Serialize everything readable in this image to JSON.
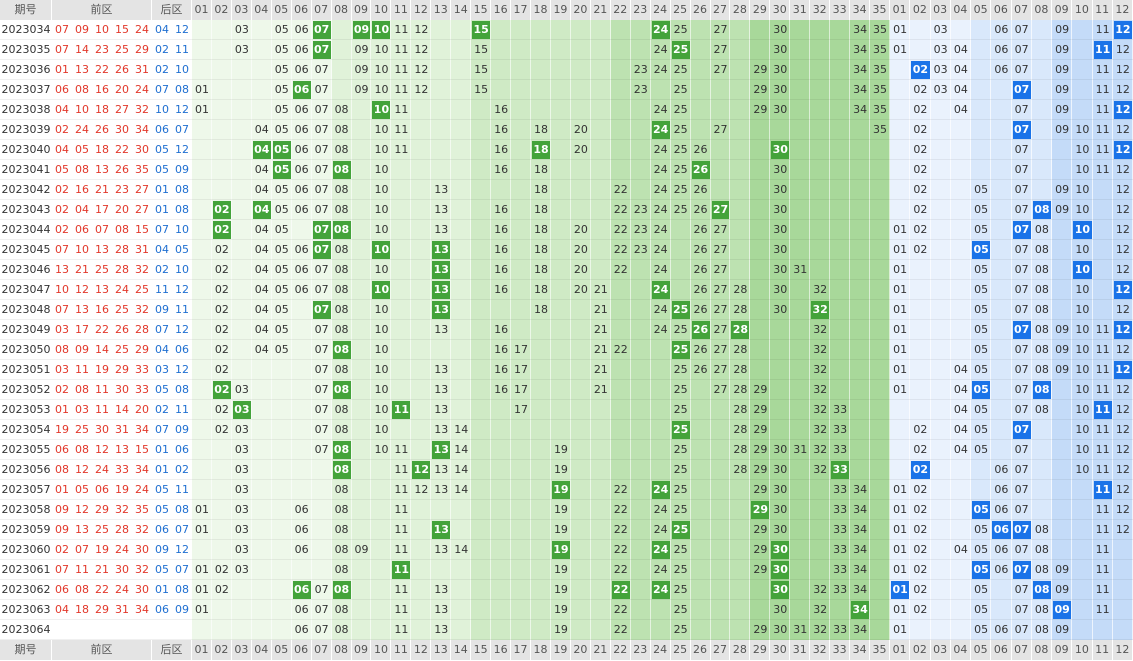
{
  "header": {
    "issue": "期号",
    "front": "前区",
    "back": "后区",
    "front_cols": [
      "01",
      "02",
      "03",
      "04",
      "05",
      "06",
      "07",
      "08",
      "09",
      "10",
      "11",
      "12",
      "13",
      "14",
      "15",
      "16",
      "17",
      "18",
      "19",
      "20",
      "21",
      "22",
      "23",
      "24",
      "25",
      "26",
      "27",
      "28",
      "29",
      "30",
      "31",
      "32",
      "33",
      "34",
      "35"
    ],
    "back_cols": [
      "01",
      "02",
      "03",
      "04",
      "05",
      "06",
      "07",
      "08",
      "09",
      "10",
      "11",
      "12"
    ]
  },
  "rows": [
    {
      "issue": "2023034",
      "front": [
        "07",
        "09",
        "10",
        "15",
        "24"
      ],
      "back": [
        "04",
        "12"
      ],
      "front_grid": [
        "03",
        "05",
        "06",
        "07",
        "09",
        "10",
        "11",
        "12",
        "15",
        "24",
        "25",
        "27",
        "30",
        "34",
        "35"
      ],
      "back_grid": [
        "01",
        "03",
        "06",
        "07",
        "09",
        "11",
        "12"
      ]
    },
    {
      "issue": "2023035",
      "front": [
        "07",
        "14",
        "23",
        "25",
        "29"
      ],
      "back": [
        "02",
        "11"
      ],
      "front_grid": [
        "03",
        "05",
        "06",
        "07",
        "09",
        "10",
        "11",
        "12",
        "15",
        "24",
        "25",
        "27",
        "30",
        "34",
        "35"
      ],
      "back_grid": [
        "01",
        "03",
        "04",
        "06",
        "07",
        "09",
        "11",
        "12"
      ]
    },
    {
      "issue": "2023036",
      "front": [
        "01",
        "13",
        "22",
        "26",
        "31"
      ],
      "back": [
        "02",
        "10"
      ],
      "front_grid": [
        "05",
        "06",
        "07",
        "09",
        "10",
        "11",
        "12",
        "15",
        "23",
        "24",
        "25",
        "27",
        "29",
        "30",
        "34",
        "35"
      ],
      "back_grid": [
        "02",
        "03",
        "04",
        "06",
        "07",
        "09",
        "11",
        "12"
      ]
    },
    {
      "issue": "2023037",
      "front": [
        "06",
        "08",
        "16",
        "20",
        "24"
      ],
      "back": [
        "07",
        "08"
      ],
      "front_grid": [
        "01",
        "05",
        "06",
        "07",
        "09",
        "10",
        "11",
        "12",
        "15",
        "23",
        "25",
        "29",
        "30",
        "34",
        "35"
      ],
      "back_grid": [
        "02",
        "03",
        "04",
        "07",
        "09",
        "11",
        "12"
      ]
    },
    {
      "issue": "2023038",
      "front": [
        "04",
        "10",
        "18",
        "27",
        "32"
      ],
      "back": [
        "10",
        "12"
      ],
      "front_grid": [
        "01",
        "05",
        "06",
        "07",
        "08",
        "10",
        "11",
        "16",
        "24",
        "25",
        "29",
        "30",
        "34",
        "35"
      ],
      "back_grid": [
        "02",
        "04",
        "07",
        "09",
        "11",
        "12"
      ]
    },
    {
      "issue": "2023039",
      "front": [
        "02",
        "24",
        "26",
        "30",
        "34"
      ],
      "back": [
        "06",
        "07"
      ],
      "front_grid": [
        "04",
        "05",
        "06",
        "07",
        "08",
        "10",
        "11",
        "16",
        "18",
        "20",
        "24",
        "25",
        "27",
        "35"
      ],
      "back_grid": [
        "02",
        "07",
        "09",
        "10",
        "11",
        "12"
      ]
    },
    {
      "issue": "2023040",
      "front": [
        "04",
        "05",
        "18",
        "22",
        "30"
      ],
      "back": [
        "05",
        "12"
      ],
      "front_grid": [
        "04",
        "05",
        "06",
        "07",
        "08",
        "10",
        "11",
        "16",
        "18",
        "20",
        "24",
        "25",
        "26",
        "30"
      ],
      "back_grid": [
        "02",
        "07",
        "10",
        "11",
        "12"
      ]
    },
    {
      "issue": "2023041",
      "front": [
        "05",
        "08",
        "13",
        "26",
        "35"
      ],
      "back": [
        "05",
        "09"
      ],
      "front_grid": [
        "04",
        "05",
        "06",
        "07",
        "08",
        "10",
        "16",
        "18",
        "24",
        "25",
        "26",
        "30"
      ],
      "back_grid": [
        "02",
        "07",
        "10",
        "11",
        "12"
      ]
    },
    {
      "issue": "2023042",
      "front": [
        "02",
        "16",
        "21",
        "23",
        "27"
      ],
      "back": [
        "01",
        "08"
      ],
      "front_grid": [
        "04",
        "05",
        "06",
        "07",
        "08",
        "10",
        "13",
        "18",
        "22",
        "24",
        "25",
        "26",
        "30"
      ],
      "back_grid": [
        "02",
        "05",
        "07",
        "09",
        "10",
        "12"
      ]
    },
    {
      "issue": "2023043",
      "front": [
        "02",
        "04",
        "17",
        "20",
        "27"
      ],
      "back": [
        "01",
        "08"
      ],
      "front_grid": [
        "02",
        "04",
        "05",
        "06",
        "07",
        "08",
        "10",
        "13",
        "16",
        "18",
        "22",
        "23",
        "24",
        "25",
        "26",
        "27",
        "30"
      ],
      "back_grid": [
        "02",
        "05",
        "07",
        "08",
        "09",
        "10",
        "12"
      ]
    },
    {
      "issue": "2023044",
      "front": [
        "02",
        "06",
        "07",
        "08",
        "15"
      ],
      "back": [
        "07",
        "10"
      ],
      "front_grid": [
        "02",
        "04",
        "05",
        "07",
        "08",
        "10",
        "13",
        "16",
        "18",
        "20",
        "22",
        "23",
        "24",
        "26",
        "27",
        "30"
      ],
      "back_grid": [
        "01",
        "02",
        "05",
        "07",
        "08",
        "10",
        "12"
      ]
    },
    {
      "issue": "2023045",
      "front": [
        "07",
        "10",
        "13",
        "28",
        "31"
      ],
      "back": [
        "04",
        "05"
      ],
      "front_grid": [
        "02",
        "04",
        "05",
        "06",
        "07",
        "08",
        "10",
        "13",
        "16",
        "18",
        "20",
        "22",
        "23",
        "24",
        "26",
        "27",
        "30"
      ],
      "back_grid": [
        "01",
        "02",
        "05",
        "07",
        "08",
        "10",
        "12"
      ]
    },
    {
      "issue": "2023046",
      "front": [
        "13",
        "21",
        "25",
        "28",
        "32"
      ],
      "back": [
        "02",
        "10"
      ],
      "front_grid": [
        "02",
        "04",
        "05",
        "06",
        "07",
        "08",
        "10",
        "13",
        "16",
        "18",
        "20",
        "22",
        "24",
        "26",
        "27",
        "30",
        "31"
      ],
      "back_grid": [
        "01",
        "05",
        "07",
        "08",
        "10",
        "12"
      ]
    },
    {
      "issue": "2023047",
      "front": [
        "10",
        "12",
        "13",
        "24",
        "25"
      ],
      "back": [
        "11",
        "12"
      ],
      "front_grid": [
        "02",
        "04",
        "05",
        "06",
        "07",
        "08",
        "10",
        "13",
        "16",
        "18",
        "20",
        "21",
        "24",
        "26",
        "27",
        "28",
        "30",
        "32"
      ],
      "back_grid": [
        "01",
        "05",
        "07",
        "08",
        "10",
        "12"
      ]
    },
    {
      "issue": "2023048",
      "front": [
        "07",
        "13",
        "16",
        "25",
        "32"
      ],
      "back": [
        "09",
        "11"
      ],
      "front_grid": [
        "02",
        "04",
        "05",
        "07",
        "08",
        "10",
        "13",
        "18",
        "21",
        "24",
        "25",
        "26",
        "27",
        "28",
        "30",
        "32"
      ],
      "back_grid": [
        "01",
        "05",
        "07",
        "08",
        "10",
        "12"
      ]
    },
    {
      "issue": "2023049",
      "front": [
        "03",
        "17",
        "22",
        "26",
        "28"
      ],
      "back": [
        "07",
        "12"
      ],
      "front_grid": [
        "02",
        "04",
        "05",
        "07",
        "08",
        "10",
        "13",
        "16",
        "21",
        "24",
        "25",
        "26",
        "27",
        "28",
        "32"
      ],
      "back_grid": [
        "01",
        "05",
        "07",
        "08",
        "09",
        "10",
        "11",
        "12"
      ]
    },
    {
      "issue": "2023050",
      "front": [
        "08",
        "09",
        "14",
        "25",
        "29"
      ],
      "back": [
        "04",
        "06"
      ],
      "front_grid": [
        "02",
        "04",
        "05",
        "07",
        "08",
        "10",
        "16",
        "17",
        "21",
        "22",
        "25",
        "26",
        "27",
        "28",
        "32"
      ],
      "back_grid": [
        "01",
        "05",
        "07",
        "08",
        "09",
        "10",
        "11",
        "12"
      ]
    },
    {
      "issue": "2023051",
      "front": [
        "03",
        "11",
        "19",
        "29",
        "33"
      ],
      "back": [
        "03",
        "12"
      ],
      "front_grid": [
        "02",
        "07",
        "08",
        "10",
        "13",
        "16",
        "17",
        "21",
        "25",
        "26",
        "27",
        "28",
        "32"
      ],
      "back_grid": [
        "01",
        "04",
        "05",
        "07",
        "08",
        "09",
        "10",
        "11",
        "12"
      ]
    },
    {
      "issue": "2023052",
      "front": [
        "02",
        "08",
        "11",
        "30",
        "33"
      ],
      "back": [
        "05",
        "08"
      ],
      "front_grid": [
        "02",
        "03",
        "07",
        "08",
        "10",
        "13",
        "16",
        "17",
        "21",
        "25",
        "27",
        "28",
        "29",
        "32"
      ],
      "back_grid": [
        "01",
        "04",
        "05",
        "07",
        "08",
        "10",
        "11",
        "12"
      ]
    },
    {
      "issue": "2023053",
      "front": [
        "01",
        "03",
        "11",
        "14",
        "20"
      ],
      "back": [
        "02",
        "11"
      ],
      "front_grid": [
        "02",
        "03",
        "07",
        "08",
        "10",
        "11",
        "13",
        "17",
        "25",
        "28",
        "29",
        "32",
        "33"
      ],
      "back_grid": [
        "04",
        "05",
        "07",
        "08",
        "10",
        "11",
        "12"
      ]
    },
    {
      "issue": "2023054",
      "front": [
        "19",
        "25",
        "30",
        "31",
        "34"
      ],
      "back": [
        "07",
        "09"
      ],
      "front_grid": [
        "02",
        "03",
        "07",
        "08",
        "10",
        "13",
        "14",
        "25",
        "28",
        "29",
        "32",
        "33"
      ],
      "back_grid": [
        "02",
        "04",
        "05",
        "07",
        "10",
        "11",
        "12"
      ]
    },
    {
      "issue": "2023055",
      "front": [
        "06",
        "08",
        "12",
        "13",
        "15"
      ],
      "back": [
        "01",
        "06"
      ],
      "front_grid": [
        "03",
        "07",
        "08",
        "10",
        "11",
        "13",
        "14",
        "19",
        "25",
        "28",
        "29",
        "30",
        "31",
        "32",
        "33"
      ],
      "back_grid": [
        "02",
        "04",
        "05",
        "07",
        "10",
        "11",
        "12"
      ]
    },
    {
      "issue": "2023056",
      "front": [
        "08",
        "12",
        "24",
        "33",
        "34"
      ],
      "back": [
        "01",
        "02"
      ],
      "front_grid": [
        "03",
        "08",
        "11",
        "12",
        "13",
        "14",
        "19",
        "25",
        "28",
        "29",
        "30",
        "32",
        "33"
      ],
      "back_grid": [
        "02",
        "06",
        "07",
        "10",
        "11",
        "12"
      ]
    },
    {
      "issue": "2023057",
      "front": [
        "01",
        "05",
        "06",
        "19",
        "24"
      ],
      "back": [
        "05",
        "11"
      ],
      "front_grid": [
        "03",
        "08",
        "11",
        "12",
        "13",
        "14",
        "19",
        "22",
        "24",
        "25",
        "29",
        "30",
        "33",
        "34"
      ],
      "back_grid": [
        "01",
        "02",
        "06",
        "07",
        "11",
        "12"
      ]
    },
    {
      "issue": "2023058",
      "front": [
        "09",
        "12",
        "29",
        "32",
        "35"
      ],
      "back": [
        "05",
        "08"
      ],
      "front_grid": [
        "01",
        "03",
        "06",
        "08",
        "11",
        "19",
        "22",
        "24",
        "25",
        "29",
        "30",
        "33",
        "34"
      ],
      "back_grid": [
        "01",
        "02",
        "05",
        "06",
        "07",
        "11",
        "12"
      ]
    },
    {
      "issue": "2023059",
      "front": [
        "09",
        "13",
        "25",
        "28",
        "32"
      ],
      "back": [
        "06",
        "07"
      ],
      "front_grid": [
        "01",
        "03",
        "06",
        "08",
        "11",
        "13",
        "19",
        "22",
        "24",
        "25",
        "29",
        "30",
        "33",
        "34"
      ],
      "back_grid": [
        "01",
        "02",
        "05",
        "06",
        "07",
        "08",
        "11",
        "12"
      ]
    },
    {
      "issue": "2023060",
      "front": [
        "02",
        "07",
        "19",
        "24",
        "30"
      ],
      "back": [
        "09",
        "12"
      ],
      "front_grid": [
        "03",
        "06",
        "08",
        "09",
        "11",
        "13",
        "14",
        "19",
        "22",
        "24",
        "25",
        "29",
        "30",
        "33",
        "34"
      ],
      "back_grid": [
        "01",
        "02",
        "04",
        "05",
        "06",
        "07",
        "08",
        "11"
      ]
    },
    {
      "issue": "2023061",
      "front": [
        "07",
        "11",
        "21",
        "30",
        "32"
      ],
      "back": [
        "05",
        "07"
      ],
      "front_grid": [
        "01",
        "02",
        "03",
        "08",
        "11",
        "19",
        "22",
        "24",
        "25",
        "29",
        "30",
        "33",
        "34"
      ],
      "back_grid": [
        "01",
        "02",
        "05",
        "06",
        "07",
        "08",
        "09",
        "11"
      ]
    },
    {
      "issue": "2023062",
      "front": [
        "06",
        "08",
        "22",
        "24",
        "30"
      ],
      "back": [
        "01",
        "08"
      ],
      "front_grid": [
        "01",
        "02",
        "06",
        "07",
        "08",
        "11",
        "13",
        "19",
        "22",
        "24",
        "25",
        "30",
        "32",
        "33",
        "34"
      ],
      "back_grid": [
        "01",
        "02",
        "05",
        "07",
        "08",
        "09",
        "11"
      ]
    },
    {
      "issue": "2023063",
      "front": [
        "04",
        "18",
        "29",
        "31",
        "34"
      ],
      "back": [
        "06",
        "09"
      ],
      "front_grid": [
        "01",
        "06",
        "07",
        "08",
        "11",
        "13",
        "19",
        "22",
        "25",
        "30",
        "32",
        "34"
      ],
      "back_grid": [
        "01",
        "02",
        "05",
        "07",
        "08",
        "09",
        "11"
      ]
    },
    {
      "issue": "2023064",
      "front": [],
      "back": [],
      "front_grid": [
        "06",
        "07",
        "08",
        "11",
        "13",
        "19",
        "22",
        "25",
        "29",
        "30",
        "31",
        "32",
        "33",
        "34"
      ],
      "back_grid": [
        "01",
        "05",
        "06",
        "07",
        "08",
        "09"
      ]
    }
  ]
}
